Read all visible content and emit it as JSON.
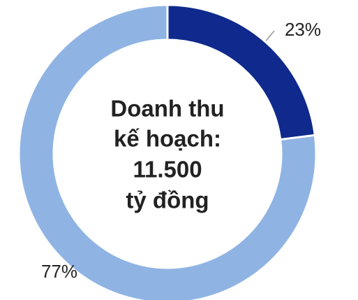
{
  "chart_data": {
    "type": "donut",
    "categories": [
      null,
      null
    ],
    "values": [
      23,
      77
    ],
    "value_labels": [
      "23%",
      "77%"
    ],
    "colors": [
      "#0f2a8c",
      "#8fb4e3"
    ],
    "center_text": [
      "Doanh thu",
      "kế hoạch:",
      "11.500",
      "tỷ đồng"
    ]
  }
}
